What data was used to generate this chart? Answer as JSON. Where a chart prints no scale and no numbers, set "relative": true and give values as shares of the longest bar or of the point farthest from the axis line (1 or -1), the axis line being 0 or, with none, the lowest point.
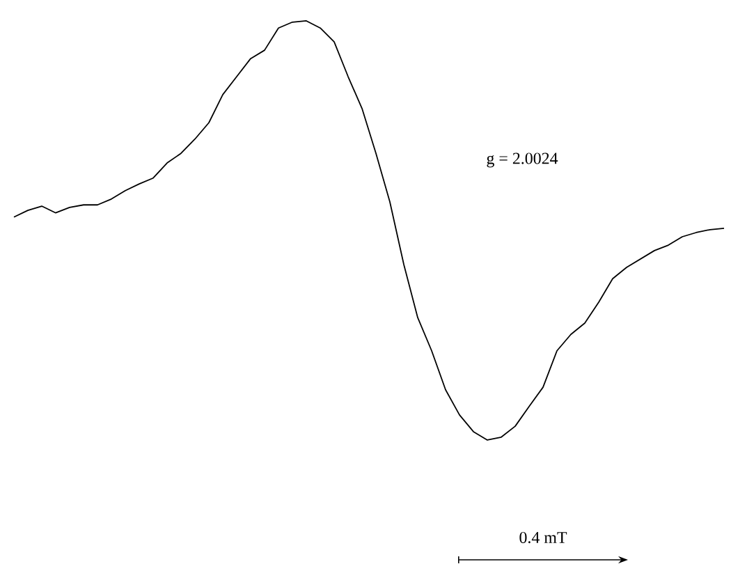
{
  "chart_data": {
    "type": "line",
    "relative": true,
    "categories": [
      null,
      null,
      null,
      null,
      null,
      null,
      null,
      null,
      null,
      null,
      null,
      null,
      null,
      null,
      null,
      null,
      null,
      null,
      null,
      null,
      null,
      null,
      null,
      null,
      null,
      null,
      null,
      null,
      null,
      null,
      null,
      null,
      null,
      null,
      null,
      null,
      null,
      null,
      null,
      null,
      null,
      null,
      null,
      null,
      null,
      null,
      null,
      null,
      null,
      null,
      null,
      null
    ],
    "values": [
      0.532,
      0.548,
      0.558,
      0.542,
      0.555,
      0.561,
      0.561,
      0.575,
      0.595,
      0.611,
      0.625,
      0.661,
      0.684,
      0.718,
      0.757,
      0.824,
      0.867,
      0.91,
      0.93,
      0.983,
      0.997,
      1,
      0.983,
      0.95,
      0.867,
      0.791,
      0.684,
      0.568,
      0.419,
      0.292,
      0.213,
      0.12,
      0.06,
      0.02,
      0,
      0.007,
      0.033,
      0.08,
      0.126,
      0.213,
      0.252,
      0.279,
      0.329,
      0.385,
      0.412,
      0.432,
      0.452,
      0.465,
      0.485,
      0.495,
      0.502,
      0.505
    ],
    "color": "#000000",
    "annotations": [
      "g = 2.0024",
      "0.4 mT"
    ]
  }
}
